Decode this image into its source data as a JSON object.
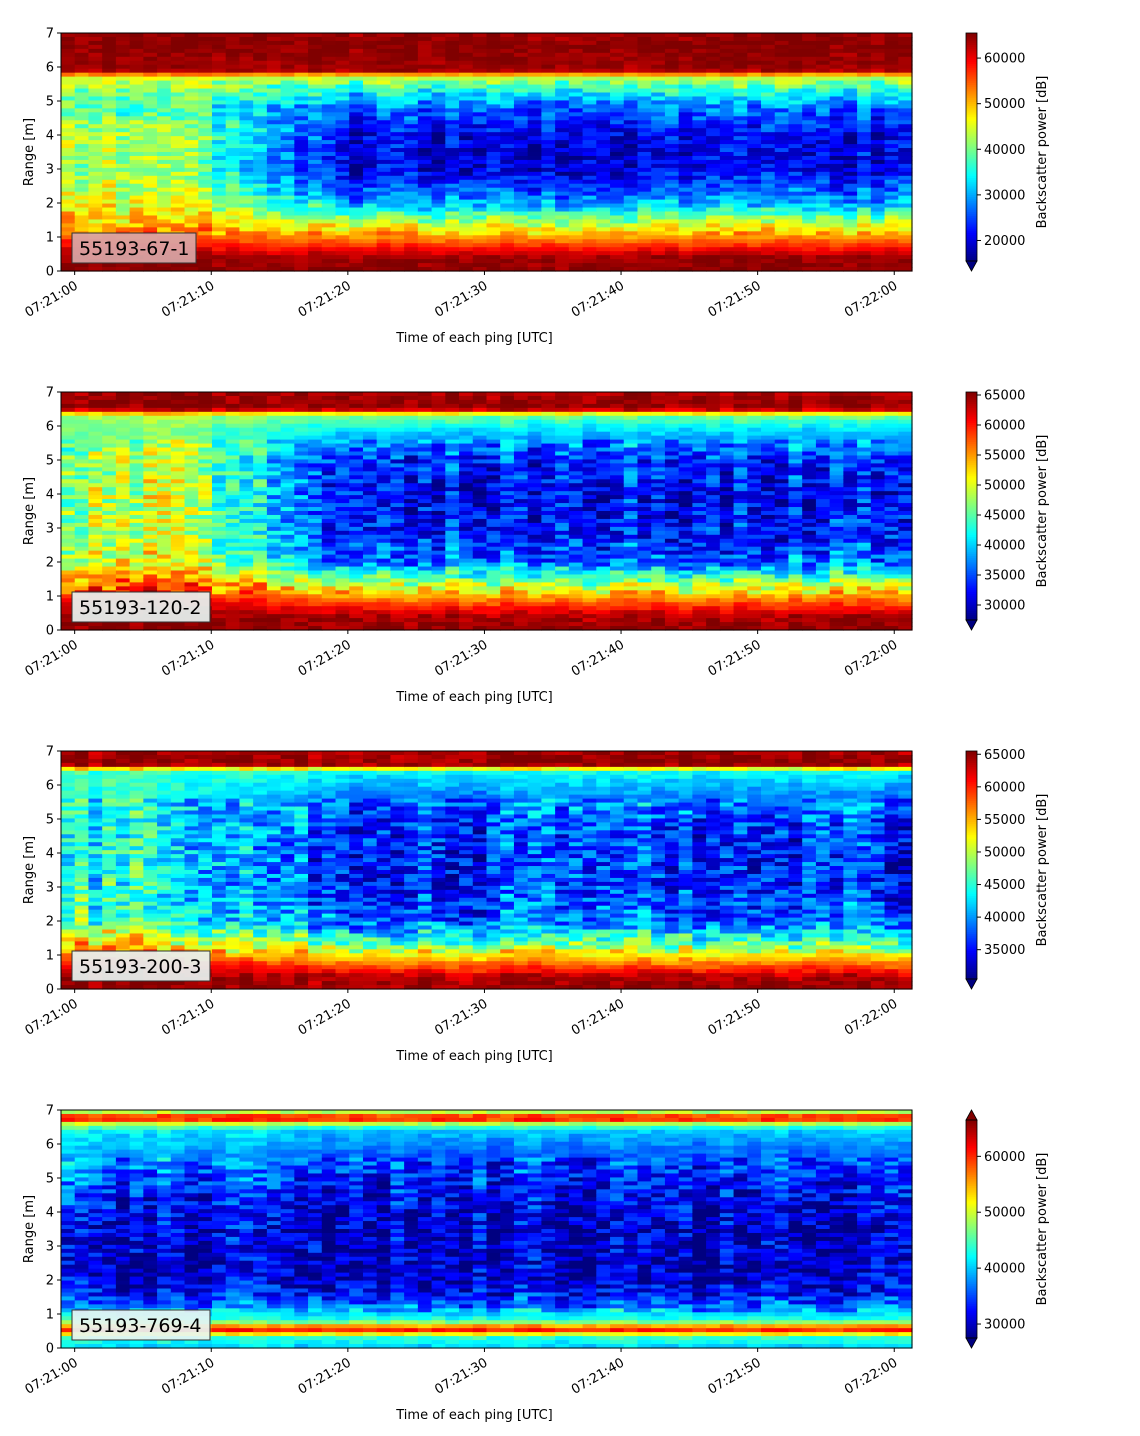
{
  "colors": {
    "colormap": "jet",
    "label_box_light": "#e8f4f2",
    "label_box_red": "#d9a7a7"
  },
  "chart_data": [
    {
      "type": "heatmap",
      "panel_label": "55193-67-1",
      "xlabel": "Time of each ping [UTC]",
      "ylabel": "Range [m]",
      "x_ticks": [
        "07:21:00",
        "07:21:10",
        "07:21:20",
        "07:21:30",
        "07:21:40",
        "07:21:50",
        "07:22:00"
      ],
      "x_range_seconds": [
        -1,
        61.3
      ],
      "y_ticks": [
        0,
        1,
        2,
        3,
        4,
        5,
        6,
        7
      ],
      "ylim": [
        0,
        7
      ],
      "colorbar": {
        "label": "Backscatter power [dB]",
        "ticks": [
          20000,
          30000,
          40000,
          50000,
          60000
        ],
        "vmin": 15500,
        "vmax": 65500,
        "extend": "min"
      },
      "profile": [
        {
          "r": 0.0,
          "early": 64000,
          "late": 64000
        },
        {
          "r": 0.3,
          "early": 65000,
          "late": 65000
        },
        {
          "r": 1.1,
          "early": 64000,
          "late": 64000
        },
        {
          "r": 1.3,
          "early": 46000,
          "late": 44000
        },
        {
          "r": 1.8,
          "early": 40000,
          "late": 33000
        },
        {
          "r": 2.2,
          "early": 38000,
          "late": 27000
        },
        {
          "r": 3.0,
          "early": 44000,
          "late": 21000
        },
        {
          "r": 4.0,
          "early": 42000,
          "late": 20000
        },
        {
          "r": 5.0,
          "early": 46000,
          "late": 30000
        },
        {
          "r": 5.6,
          "early": 50000,
          "late": 44000
        },
        {
          "r": 6.2,
          "early": 58000,
          "late": 56000
        },
        {
          "r": 6.6,
          "early": 64000,
          "late": 64000
        },
        {
          "r": 7.0,
          "early": 65000,
          "late": 65000
        }
      ]
    },
    {
      "type": "heatmap",
      "panel_label": "55193-120-2",
      "xlabel": "Time of each ping [UTC]",
      "ylabel": "Range [m]",
      "x_ticks": [
        "07:21:00",
        "07:21:10",
        "07:21:20",
        "07:21:30",
        "07:21:40",
        "07:21:50",
        "07:22:00"
      ],
      "x_range_seconds": [
        -1,
        61.3
      ],
      "y_ticks": [
        0,
        1,
        2,
        3,
        4,
        5,
        6,
        7
      ],
      "ylim": [
        0,
        7
      ],
      "colorbar": {
        "label": "Backscatter power [dB]",
        "ticks": [
          30000,
          35000,
          40000,
          45000,
          50000,
          55000,
          60000,
          65000
        ],
        "vmin": 27500,
        "vmax": 65500,
        "extend": "min"
      },
      "profile": [
        {
          "r": 0.0,
          "early": 64000,
          "late": 64000
        },
        {
          "r": 0.5,
          "early": 65000,
          "late": 65000
        },
        {
          "r": 0.7,
          "early": 48000,
          "late": 46000
        },
        {
          "r": 1.2,
          "early": 46000,
          "late": 40000
        },
        {
          "r": 2.0,
          "early": 48000,
          "late": 34000
        },
        {
          "r": 3.0,
          "early": 49000,
          "late": 32000
        },
        {
          "r": 4.0,
          "early": 48000,
          "late": 33000
        },
        {
          "r": 5.0,
          "early": 50000,
          "late": 36000
        },
        {
          "r": 5.6,
          "early": 56000,
          "late": 48000
        },
        {
          "r": 6.2,
          "early": 62000,
          "late": 58000
        },
        {
          "r": 6.6,
          "early": 65000,
          "late": 64000
        },
        {
          "r": 7.0,
          "early": 65000,
          "late": 65000
        }
      ]
    },
    {
      "type": "heatmap",
      "panel_label": "55193-200-3",
      "xlabel": "Time of each ping [UTC]",
      "ylabel": "Range [m]",
      "x_ticks": [
        "07:21:00",
        "07:21:10",
        "07:21:20",
        "07:21:30",
        "07:21:40",
        "07:21:50",
        "07:22:00"
      ],
      "x_range_seconds": [
        -1,
        61.3
      ],
      "y_ticks": [
        0,
        1,
        2,
        3,
        4,
        5,
        6,
        7
      ],
      "ylim": [
        0,
        7
      ],
      "colorbar": {
        "label": "Backscatter power [dB]",
        "ticks": [
          35000,
          40000,
          45000,
          50000,
          55000,
          60000,
          65000
        ],
        "vmin": 30500,
        "vmax": 65500,
        "extend": "min"
      },
      "profile": [
        {
          "r": 0.0,
          "early": 64000,
          "late": 64000
        },
        {
          "r": 0.4,
          "early": 65000,
          "late": 65000
        },
        {
          "r": 0.6,
          "early": 46000,
          "late": 44000
        },
        {
          "r": 1.2,
          "early": 45000,
          "late": 40000
        },
        {
          "r": 2.0,
          "early": 44000,
          "late": 37000
        },
        {
          "r": 3.0,
          "early": 44000,
          "late": 36000
        },
        {
          "r": 4.0,
          "early": 44000,
          "late": 36000
        },
        {
          "r": 5.0,
          "early": 46000,
          "late": 38000
        },
        {
          "r": 5.6,
          "early": 52000,
          "late": 46000
        },
        {
          "r": 6.2,
          "early": 60000,
          "late": 56000
        },
        {
          "r": 6.6,
          "early": 65000,
          "late": 63000
        },
        {
          "r": 7.0,
          "early": 65000,
          "late": 65000
        }
      ]
    },
    {
      "type": "heatmap",
      "panel_label": "55193-769-4",
      "xlabel": "Time of each ping [UTC]",
      "ylabel": "Range [m]",
      "x_ticks": [
        "07:21:00",
        "07:21:10",
        "07:21:20",
        "07:21:30",
        "07:21:40",
        "07:21:50",
        "07:22:00"
      ],
      "x_range_seconds": [
        -1,
        61.3
      ],
      "y_ticks": [
        0,
        1,
        2,
        3,
        4,
        5,
        6,
        7
      ],
      "ylim": [
        0,
        7
      ],
      "colorbar": {
        "label": "Backscatter power [dB]",
        "ticks": [
          30000,
          40000,
          50000,
          60000
        ],
        "vmin": 27500,
        "vmax": 66500,
        "extend": "both"
      },
      "profile": [
        {
          "r": 0.0,
          "early": 44000,
          "late": 44000
        },
        {
          "r": 0.25,
          "early": 65000,
          "late": 65000
        },
        {
          "r": 0.35,
          "early": 52000,
          "late": 52000
        },
        {
          "r": 0.6,
          "early": 42000,
          "late": 40000
        },
        {
          "r": 1.5,
          "early": 38000,
          "late": 35000
        },
        {
          "r": 2.5,
          "early": 34000,
          "late": 32000
        },
        {
          "r": 3.5,
          "early": 31000,
          "late": 30500
        },
        {
          "r": 5.0,
          "early": 30500,
          "late": 30000
        },
        {
          "r": 5.6,
          "early": 34000,
          "late": 34000
        },
        {
          "r": 6.2,
          "early": 44000,
          "late": 44000
        },
        {
          "r": 6.45,
          "early": 62000,
          "late": 62000
        },
        {
          "r": 6.7,
          "early": 44000,
          "late": 44000
        },
        {
          "r": 7.0,
          "early": 40000,
          "late": 40000
        }
      ]
    }
  ]
}
